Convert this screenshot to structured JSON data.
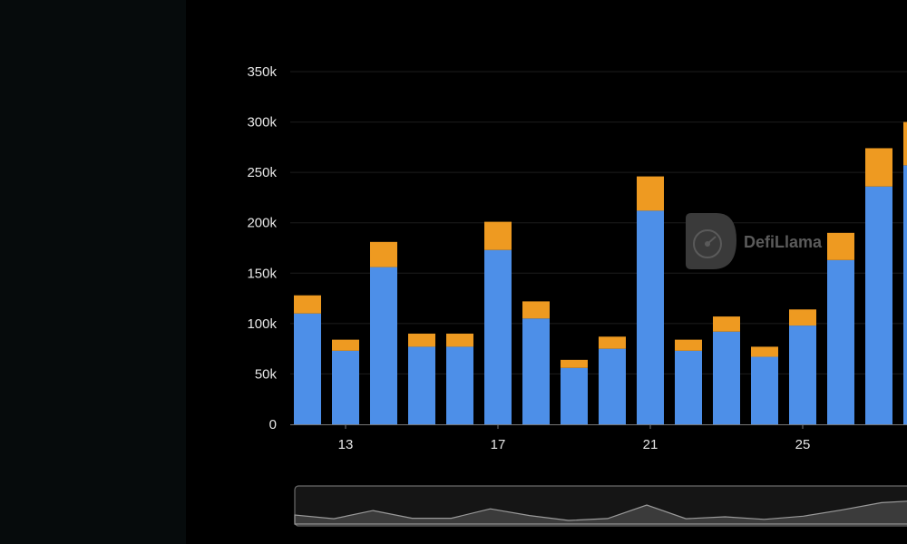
{
  "watermark": {
    "text": "DefiLlama"
  },
  "colors": {
    "primary_series": "#4d8fe8",
    "secondary_series": "#ee9a21",
    "gridline": "#1c1c1c",
    "axis": "#777777",
    "sidebar_bg": "#060b0c",
    "panel_bg": "#000000"
  },
  "chart_data": {
    "type": "bar",
    "stacked": true,
    "x": [
      12,
      13,
      14,
      15,
      16,
      17,
      18,
      19,
      20,
      21,
      22,
      23,
      24,
      25,
      26,
      27,
      28
    ],
    "x_tick_labels": [
      "13",
      "17",
      "21",
      "25"
    ],
    "x_tick_values": [
      13,
      17,
      21,
      25
    ],
    "series": [
      {
        "values": [
          110000,
          73000,
          156000,
          77000,
          77000,
          173000,
          105000,
          56000,
          75000,
          212000,
          73000,
          92000,
          67000,
          98000,
          163000,
          236000,
          257000
        ]
      },
      {
        "values": [
          18000,
          11000,
          25000,
          13000,
          13000,
          28000,
          17000,
          8000,
          12000,
          34000,
          11000,
          15000,
          10000,
          16000,
          27000,
          38000,
          43000
        ]
      }
    ],
    "y_ticks": [
      0,
      50000,
      100000,
      150000,
      200000,
      250000,
      300000,
      350000
    ],
    "y_tick_labels": [
      "0",
      "50k",
      "100k",
      "150k",
      "200k",
      "250k",
      "300k",
      "350k"
    ],
    "ylim": [
      0,
      350000
    ],
    "grid": true,
    "legend": "none",
    "brush_overview": true
  }
}
